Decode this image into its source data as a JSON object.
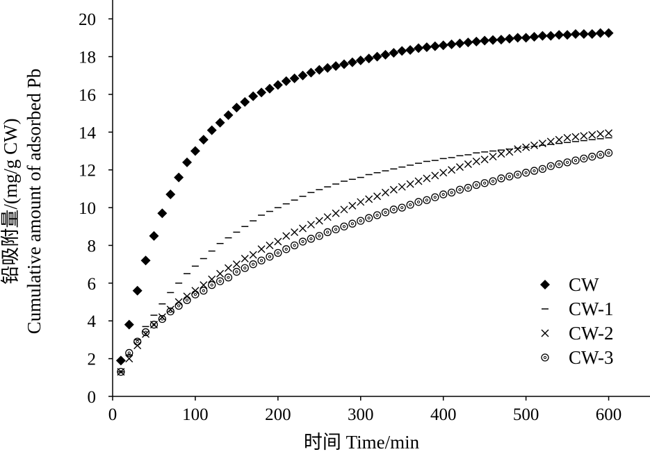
{
  "chart_data": {
    "type": "scatter",
    "xlabel": "时间 Time/min",
    "ylabel_line1": "铅吸附量/(mg/g CW)",
    "ylabel_line2": "Cumulative amount of adsorbed Pb",
    "xlim": [
      0,
      650
    ],
    "ylim": [
      0,
      21
    ],
    "x_ticks": [
      "0",
      "100",
      "200",
      "300",
      "400",
      "500",
      "600"
    ],
    "y_ticks": [
      "0",
      "2",
      "4",
      "6",
      "8",
      "10",
      "12",
      "14",
      "16",
      "18",
      "20"
    ],
    "grid": false,
    "legend_position": "bottom-right",
    "series": [
      {
        "name": "CW",
        "marker": "diamond",
        "x": [
          10,
          20,
          30,
          40,
          50,
          60,
          70,
          80,
          90,
          100,
          110,
          120,
          130,
          140,
          150,
          160,
          170,
          180,
          190,
          200,
          210,
          220,
          230,
          240,
          250,
          260,
          270,
          280,
          290,
          300,
          310,
          320,
          330,
          340,
          350,
          360,
          370,
          380,
          390,
          400,
          410,
          420,
          430,
          440,
          450,
          460,
          470,
          480,
          490,
          500,
          510,
          520,
          530,
          540,
          550,
          560,
          570,
          580,
          590,
          600
        ],
        "values": [
          1.9,
          3.8,
          5.6,
          7.2,
          8.5,
          9.7,
          10.7,
          11.6,
          12.4,
          13.0,
          13.6,
          14.1,
          14.5,
          14.9,
          15.3,
          15.6,
          15.9,
          16.1,
          16.3,
          16.5,
          16.7,
          16.85,
          17.0,
          17.15,
          17.3,
          17.4,
          17.5,
          17.6,
          17.7,
          17.8,
          17.9,
          18.0,
          18.1,
          18.2,
          18.3,
          18.35,
          18.45,
          18.5,
          18.55,
          18.6,
          18.65,
          18.7,
          18.75,
          18.8,
          18.85,
          18.88,
          18.9,
          18.95,
          19.0,
          19.0,
          19.05,
          19.1,
          19.1,
          19.15,
          19.15,
          19.2,
          19.2,
          19.2,
          19.25,
          19.25
        ]
      },
      {
        "name": "CW-1",
        "marker": "dash",
        "x": [
          10,
          20,
          30,
          40,
          50,
          60,
          70,
          80,
          90,
          100,
          110,
          120,
          130,
          140,
          150,
          160,
          170,
          180,
          190,
          200,
          210,
          220,
          230,
          240,
          250,
          260,
          270,
          280,
          290,
          300,
          310,
          320,
          330,
          340,
          350,
          360,
          370,
          380,
          390,
          400,
          410,
          420,
          430,
          440,
          450,
          460,
          470,
          480,
          490,
          500,
          510,
          520,
          530,
          540,
          550,
          560,
          570,
          580,
          590,
          600
        ],
        "values": [
          1.3,
          2.2,
          3.0,
          3.7,
          4.3,
          4.9,
          5.5,
          6.0,
          6.5,
          6.9,
          7.3,
          7.7,
          8.1,
          8.4,
          8.7,
          9.0,
          9.3,
          9.6,
          9.8,
          10.0,
          10.2,
          10.4,
          10.6,
          10.8,
          10.95,
          11.1,
          11.25,
          11.4,
          11.5,
          11.6,
          11.75,
          11.85,
          11.95,
          12.05,
          12.15,
          12.25,
          12.35,
          12.45,
          12.5,
          12.6,
          12.65,
          12.75,
          12.8,
          12.9,
          12.95,
          13.0,
          13.05,
          13.1,
          13.15,
          13.2,
          13.25,
          13.3,
          13.35,
          13.4,
          13.45,
          13.5,
          13.55,
          13.6,
          13.65,
          13.7
        ]
      },
      {
        "name": "CW-2",
        "marker": "x",
        "x": [
          10,
          20,
          30,
          40,
          50,
          60,
          70,
          80,
          90,
          100,
          110,
          120,
          130,
          140,
          150,
          160,
          170,
          180,
          190,
          200,
          210,
          220,
          230,
          240,
          250,
          260,
          270,
          280,
          290,
          300,
          310,
          320,
          330,
          340,
          350,
          360,
          370,
          380,
          390,
          400,
          410,
          420,
          430,
          440,
          450,
          460,
          470,
          480,
          490,
          500,
          510,
          520,
          530,
          540,
          550,
          560,
          570,
          580,
          590,
          600
        ],
        "values": [
          1.3,
          2.0,
          2.7,
          3.3,
          3.8,
          4.2,
          4.6,
          5.0,
          5.3,
          5.6,
          5.9,
          6.2,
          6.5,
          6.8,
          7.0,
          7.3,
          7.5,
          7.8,
          8.0,
          8.2,
          8.5,
          8.7,
          8.9,
          9.1,
          9.3,
          9.5,
          9.7,
          9.9,
          10.1,
          10.3,
          10.45,
          10.6,
          10.8,
          10.95,
          11.1,
          11.25,
          11.4,
          11.55,
          11.7,
          11.85,
          12.0,
          12.15,
          12.3,
          12.45,
          12.55,
          12.7,
          12.85,
          12.95,
          13.1,
          13.2,
          13.3,
          13.4,
          13.5,
          13.6,
          13.7,
          13.75,
          13.8,
          13.85,
          13.9,
          13.95
        ]
      },
      {
        "name": "CW-3",
        "marker": "circle",
        "x": [
          10,
          20,
          30,
          40,
          50,
          60,
          70,
          80,
          90,
          100,
          110,
          120,
          130,
          140,
          150,
          160,
          170,
          180,
          190,
          200,
          210,
          220,
          230,
          240,
          250,
          260,
          270,
          280,
          290,
          300,
          310,
          320,
          330,
          340,
          350,
          360,
          370,
          380,
          390,
          400,
          410,
          420,
          430,
          440,
          450,
          460,
          470,
          480,
          490,
          500,
          510,
          520,
          530,
          540,
          550,
          560,
          570,
          580,
          590,
          600
        ],
        "values": [
          1.3,
          2.3,
          2.9,
          3.4,
          3.8,
          4.1,
          4.5,
          4.8,
          5.1,
          5.4,
          5.6,
          5.9,
          6.1,
          6.3,
          6.6,
          6.8,
          7.0,
          7.2,
          7.4,
          7.6,
          7.8,
          8.0,
          8.2,
          8.35,
          8.5,
          8.7,
          8.85,
          9.0,
          9.15,
          9.3,
          9.45,
          9.6,
          9.75,
          9.9,
          10.0,
          10.15,
          10.3,
          10.4,
          10.55,
          10.7,
          10.8,
          10.95,
          11.05,
          11.2,
          11.3,
          11.4,
          11.55,
          11.65,
          11.75,
          11.85,
          11.95,
          12.05,
          12.2,
          12.3,
          12.4,
          12.5,
          12.6,
          12.7,
          12.8,
          12.9
        ]
      }
    ]
  }
}
